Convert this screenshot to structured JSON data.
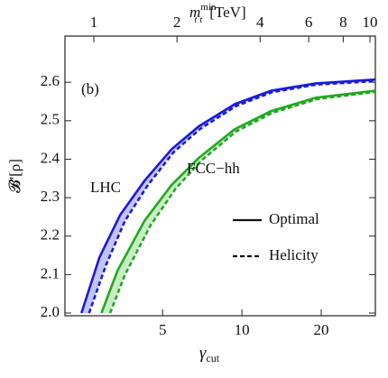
{
  "chart_data": {
    "type": "line",
    "xlabel": {
      "main": "γ",
      "sub": "cut"
    },
    "ylabel": "𝓑'[ρ]",
    "x2label": {
      "main": "m",
      "sup": "min",
      "sub": "t t",
      "unit": "[TeV]"
    },
    "xscale": "log",
    "xlim": [
      2.13,
      32.1
    ],
    "xticks": [
      5,
      10,
      20
    ],
    "x2scale": "log",
    "x2lim": [
      0.786,
      10.46
    ],
    "x2ticks": [
      1,
      2,
      4,
      6,
      8,
      10
    ],
    "ylim": [
      1.993,
      2.72
    ],
    "yticks": [
      {
        "value": 2,
        "label": "2.0"
      },
      2.1,
      2.2,
      2.3,
      2.4,
      2.5,
      2.6
    ],
    "series": [
      {
        "color": "#1a1ad8",
        "style": "solid",
        "fill": "#c4c4f2",
        "band_with": 1,
        "x": [
          2.46,
          2.88,
          3.45,
          4.27,
          5.41,
          6.85,
          9.39,
          12.9,
          19.1,
          32.1
        ],
        "values": [
          2.0,
          2.145,
          2.255,
          2.344,
          2.426,
          2.485,
          2.543,
          2.578,
          2.597,
          2.607
        ]
      },
      {
        "color": "#1a1ad8",
        "style": "dashed",
        "x": [
          2.63,
          3.05,
          3.6,
          4.4,
          5.5,
          6.95,
          9.5,
          13.0,
          19.2,
          32.1
        ],
        "values": [
          2.0,
          2.125,
          2.24,
          2.333,
          2.418,
          2.479,
          2.538,
          2.574,
          2.594,
          2.603
        ]
      },
      {
        "color": "#22a822",
        "style": "solid",
        "fill": "#c8ecc4",
        "band_with": 3,
        "x": [
          2.93,
          3.37,
          4.27,
          5.41,
          6.85,
          9.39,
          12.9,
          19.1,
          32.1
        ],
        "values": [
          2.0,
          2.11,
          2.24,
          2.333,
          2.403,
          2.478,
          2.525,
          2.56,
          2.578
        ]
      },
      {
        "color": "#22a822",
        "style": "dashed",
        "x": [
          3.16,
          3.6,
          4.5,
          5.6,
          7.0,
          9.5,
          13.0,
          19.2,
          32.1
        ],
        "values": [
          2.0,
          2.1,
          2.228,
          2.323,
          2.396,
          2.472,
          2.52,
          2.556,
          2.575
        ]
      }
    ],
    "annotations": [
      "(b)",
      "LHC",
      "FCC−hh"
    ],
    "legend": {
      "position": "center-right",
      "items": [
        {
          "label": "Optimal",
          "style": "solid"
        },
        {
          "label": "Helicity",
          "style": "dashed"
        }
      ]
    }
  }
}
